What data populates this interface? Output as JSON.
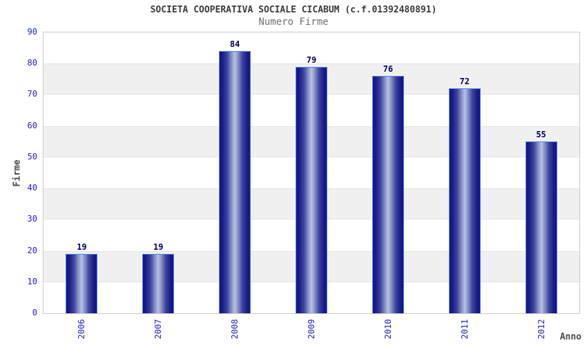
{
  "chart_data": {
    "type": "bar",
    "title": "SOCIETA COOPERATIVA SOCIALE CICABUM (c.f.01392480891)",
    "subtitle": "Numero Firme",
    "xlabel": "Anno",
    "ylabel": "Firme",
    "categories": [
      "2006",
      "2007",
      "2008",
      "2009",
      "2010",
      "2011",
      "2012"
    ],
    "values": [
      19,
      19,
      84,
      79,
      76,
      72,
      55
    ],
    "ylim": [
      0,
      90
    ],
    "yticks": [
      0,
      10,
      20,
      30,
      40,
      50,
      60,
      70,
      80,
      90
    ],
    "grid": "alternating horizontal bands, no vertical gridlines",
    "legend": "none",
    "colors": {
      "bar_dark": "#15157f",
      "bar_highlight": "#b8c1e2",
      "bar_border": "#4b86e8",
      "tick_label": "#2222cd",
      "value_label": "#00006a",
      "title": "#3b3b3b",
      "subtitle": "#6f6f6f",
      "axis_label": "#4a4a4a",
      "band_gray": "#f0f0f0",
      "band_white": "#ffffff",
      "plot_border": "#c9c9c9",
      "background": "#ffffff"
    }
  }
}
